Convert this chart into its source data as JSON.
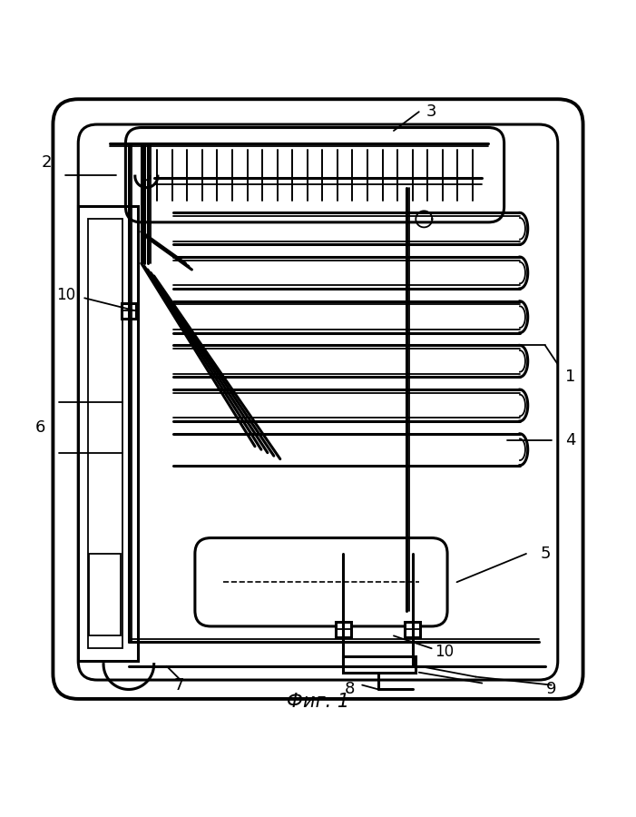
{
  "title": "Фиг. 1",
  "bg_color": "#ffffff",
  "line_color": "#000000",
  "fig_width": 7.01,
  "fig_height": 9.0,
  "lw_main": 2.2,
  "lw_thin": 1.3,
  "lw_thick": 2.8,
  "label_fontsize": 13,
  "label_fontsize_small": 12,
  "caption_fontsize": 15
}
